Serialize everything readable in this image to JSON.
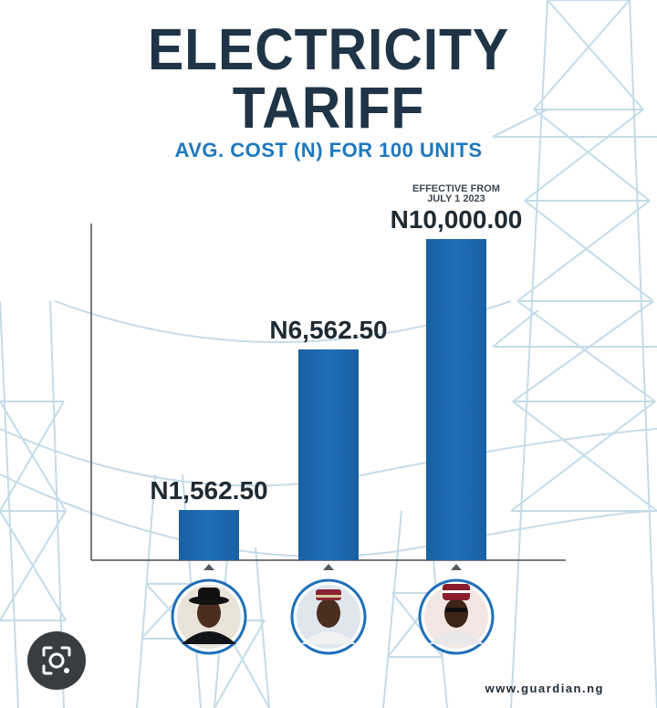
{
  "title_line1": "ELECTRICITY",
  "title_line2": "TARIFF",
  "subtitle": "AVG. COST (N) FOR 100 UNITS",
  "note_line1": "EFFECTIVE FROM",
  "note_line2": "JULY 1 2023",
  "source": "www.guardian.ng",
  "colors": {
    "title": "#1f3446",
    "subtitle": "#1e78bd",
    "bar": "#1f6fb8",
    "tower": "#c4dbe9"
  },
  "icons": [
    "lens-search-icon",
    "portrait-1-icon",
    "portrait-2-icon",
    "portrait-3-icon"
  ],
  "chart_data": {
    "type": "bar",
    "categories": [
      "",
      "",
      ""
    ],
    "values": [
      1562.5,
      6562.5,
      10000.0
    ],
    "data_labels": [
      "N1,562.50",
      "N6,562.50",
      "N10,000.00"
    ],
    "title": "ELECTRICITY TARIFF",
    "subtitle": "AVG. COST (N) FOR 100 UNITS",
    "xlabel": "",
    "ylabel": "",
    "ylim": [
      0,
      10000
    ],
    "grid": false,
    "legend": "none"
  }
}
